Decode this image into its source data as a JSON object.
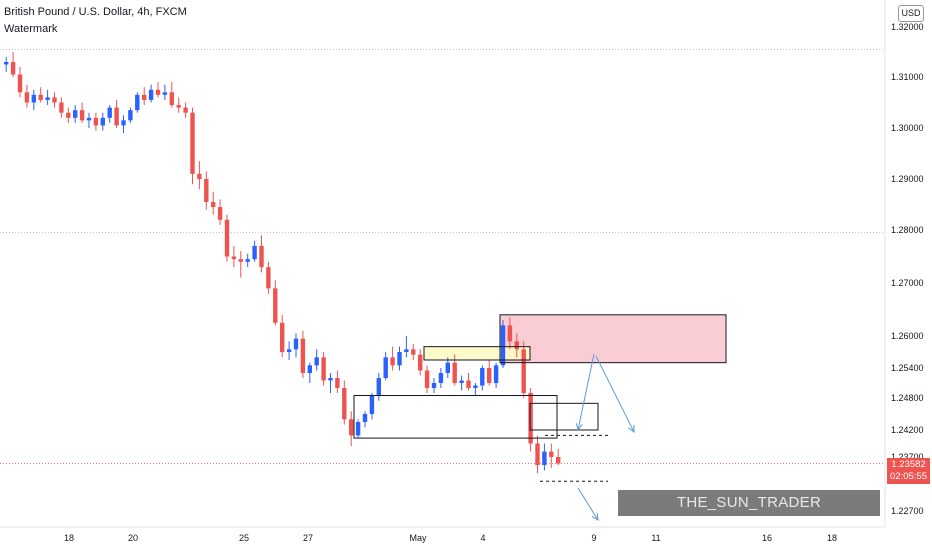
{
  "header": {
    "symbol_line": "British Pound / U.S. Dollar, 4h, FXCM",
    "indicator_label": "Watermark"
  },
  "currency_button": "USD",
  "last_price": {
    "price": "1.23582",
    "countdown": "02:05:55"
  },
  "watermark_text": "THE_SUN_TRADER",
  "colors": {
    "up": "#2962ff",
    "down": "#ef5350",
    "supply_zone": "#f8bbc4",
    "yellow_zone": "#fff9c4",
    "arrow": "#5b9bd5",
    "dotted_level": "#e57373"
  },
  "chart_data": {
    "type": "candlestick",
    "symbol": "British Pound / U.S. Dollar",
    "timeframe": "4h",
    "source": "FXCM",
    "y_ticks": [
      "1.32000",
      "1.31000",
      "1.30000",
      "1.29000",
      "1.28000",
      "1.27000",
      "1.26000",
      "1.25400",
      "1.24800",
      "1.24200",
      "1.23700",
      "1.22700"
    ],
    "x_ticks": [
      "18",
      "20",
      "25",
      "27",
      "May",
      "4",
      "9",
      "11",
      "16",
      "18"
    ],
    "ylim": [
      1.225,
      1.322
    ],
    "candles": [
      [
        1.3125,
        1.314,
        1.311,
        1.313
      ],
      [
        1.313,
        1.315,
        1.31,
        1.3105
      ],
      [
        1.3105,
        1.312,
        1.306,
        1.307
      ],
      [
        1.307,
        1.3085,
        1.304,
        1.305
      ],
      [
        1.305,
        1.3075,
        1.3035,
        1.3065
      ],
      [
        1.3065,
        1.308,
        1.305,
        1.3055
      ],
      [
        1.3055,
        1.3075,
        1.3045,
        1.306
      ],
      [
        1.306,
        1.307,
        1.304,
        1.305
      ],
      [
        1.305,
        1.306,
        1.302,
        1.303
      ],
      [
        1.303,
        1.304,
        1.301,
        1.302
      ],
      [
        1.302,
        1.3045,
        1.301,
        1.3035
      ],
      [
        1.3035,
        1.305,
        1.301,
        1.3015
      ],
      [
        1.3015,
        1.303,
        1.3,
        1.302
      ],
      [
        1.302,
        1.303,
        1.2995,
        1.3005
      ],
      [
        1.3005,
        1.303,
        1.2995,
        1.302
      ],
      [
        1.302,
        1.3045,
        1.301,
        1.304
      ],
      [
        1.304,
        1.3055,
        1.3,
        1.3005
      ],
      [
        1.3005,
        1.3025,
        1.299,
        1.3015
      ],
      [
        1.3015,
        1.304,
        1.301,
        1.3035
      ],
      [
        1.3035,
        1.307,
        1.303,
        1.3065
      ],
      [
        1.3065,
        1.308,
        1.3045,
        1.3055
      ],
      [
        1.3055,
        1.3085,
        1.305,
        1.3075
      ],
      [
        1.3075,
        1.309,
        1.306,
        1.3065
      ],
      [
        1.3065,
        1.3085,
        1.3055,
        1.307
      ],
      [
        1.307,
        1.309,
        1.304,
        1.3045
      ],
      [
        1.3045,
        1.306,
        1.303,
        1.304
      ],
      [
        1.304,
        1.305,
        1.302,
        1.303
      ],
      [
        1.303,
        1.304,
        1.289,
        1.291
      ],
      [
        1.291,
        1.2935,
        1.288,
        1.29
      ],
      [
        1.29,
        1.2915,
        1.284,
        1.2855
      ],
      [
        1.2855,
        1.2875,
        1.283,
        1.2845
      ],
      [
        1.2845,
        1.286,
        1.281,
        1.282
      ],
      [
        1.282,
        1.283,
        1.274,
        1.275
      ],
      [
        1.275,
        1.277,
        1.273,
        1.2745
      ],
      [
        1.2745,
        1.276,
        1.271,
        1.274
      ],
      [
        1.274,
        1.2755,
        1.273,
        1.2745
      ],
      [
        1.2745,
        1.278,
        1.274,
        1.277
      ],
      [
        1.277,
        1.279,
        1.272,
        1.273
      ],
      [
        1.273,
        1.274,
        1.268,
        1.269
      ],
      [
        1.269,
        1.2705,
        1.262,
        1.2625
      ],
      [
        1.2625,
        1.264,
        1.256,
        1.257
      ],
      [
        1.257,
        1.259,
        1.2555,
        1.2575
      ],
      [
        1.2575,
        1.2605,
        1.256,
        1.2595
      ],
      [
        1.2595,
        1.261,
        1.252,
        1.253
      ],
      [
        1.253,
        1.255,
        1.251,
        1.2545
      ],
      [
        1.2545,
        1.2575,
        1.2535,
        1.256
      ],
      [
        1.256,
        1.257,
        1.2505,
        1.2515
      ],
      [
        1.2515,
        1.253,
        1.249,
        1.252
      ],
      [
        1.252,
        1.2535,
        1.249,
        1.25
      ],
      [
        1.25,
        1.2515,
        1.243,
        1.244
      ],
      [
        1.244,
        1.2455,
        1.239,
        1.241
      ],
      [
        1.241,
        1.244,
        1.2405,
        1.2435
      ],
      [
        1.2435,
        1.2455,
        1.2425,
        1.245
      ],
      [
        1.245,
        1.249,
        1.244,
        1.2485
      ],
      [
        1.2485,
        1.253,
        1.2475,
        1.252
      ],
      [
        1.252,
        1.257,
        1.2515,
        1.256
      ],
      [
        1.256,
        1.258,
        1.2535,
        1.2545
      ],
      [
        1.2545,
        1.258,
        1.2535,
        1.257
      ],
      [
        1.257,
        1.26,
        1.256,
        1.2575
      ],
      [
        1.2575,
        1.2585,
        1.2555,
        1.2565
      ],
      [
        1.2565,
        1.2575,
        1.2525,
        1.2535
      ],
      [
        1.2535,
        1.2545,
        1.249,
        1.25
      ],
      [
        1.25,
        1.252,
        1.249,
        1.251
      ],
      [
        1.251,
        1.254,
        1.25,
        1.253
      ],
      [
        1.253,
        1.256,
        1.252,
        1.255
      ],
      [
        1.255,
        1.2565,
        1.2505,
        1.251
      ],
      [
        1.251,
        1.2525,
        1.2495,
        1.2515
      ],
      [
        1.2515,
        1.253,
        1.2495,
        1.25
      ],
      [
        1.25,
        1.251,
        1.2485,
        1.2505
      ],
      [
        1.2505,
        1.2545,
        1.2495,
        1.254
      ],
      [
        1.254,
        1.2555,
        1.2505,
        1.251
      ],
      [
        1.251,
        1.255,
        1.25,
        1.2545
      ],
      [
        1.2545,
        1.263,
        1.254,
        1.262
      ],
      [
        1.262,
        1.2635,
        1.2575,
        1.259
      ],
      [
        1.259,
        1.2605,
        1.256,
        1.2575
      ],
      [
        1.2575,
        1.259,
        1.248,
        1.249
      ],
      [
        1.249,
        1.25,
        1.238,
        1.2395
      ],
      [
        1.2395,
        1.241,
        1.234,
        1.2355
      ],
      [
        1.2355,
        1.2395,
        1.2345,
        1.238
      ],
      [
        1.238,
        1.2395,
        1.235,
        1.237
      ],
      [
        1.237,
        1.2385,
        1.2355,
        1.2358
      ]
    ],
    "annotations": [
      {
        "type": "rectangle",
        "name": "supply-zone",
        "y1": 1.264,
        "y2": 1.255
      },
      {
        "type": "rectangle",
        "name": "yellow-zone",
        "y1": 1.258,
        "y2": 1.2555
      },
      {
        "type": "rectangle",
        "name": "support-box",
        "y1": 1.2485,
        "y2": 1.2405
      },
      {
        "type": "rectangle",
        "name": "recent-low-box",
        "y1": 1.247,
        "y2": 1.242
      },
      {
        "type": "dotted-line",
        "name": "level-1",
        "y": 1.241
      },
      {
        "type": "dotted-line",
        "name": "level-2",
        "y": 1.2325
      },
      {
        "type": "horizontal-line",
        "name": "top-line",
        "y": 1.3155
      },
      {
        "type": "horizontal-line",
        "name": "mid-line",
        "y": 1.2795
      }
    ],
    "grid": false
  }
}
